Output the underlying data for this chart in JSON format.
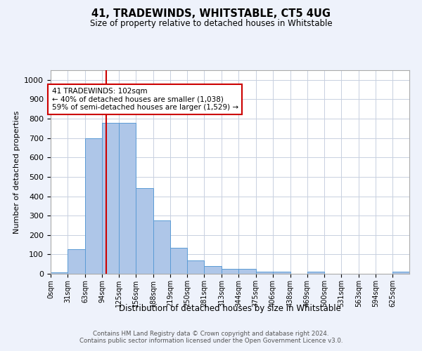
{
  "title1": "41, TRADEWINDS, WHITSTABLE, CT5 4UG",
  "title2": "Size of property relative to detached houses in Whitstable",
  "xlabel": "Distribution of detached houses by size in Whitstable",
  "ylabel": "Number of detached properties",
  "bar_values": [
    8,
    127,
    700,
    778,
    778,
    443,
    275,
    133,
    70,
    40,
    25,
    25,
    12,
    12,
    0,
    12,
    0,
    0,
    0,
    0,
    12
  ],
  "bin_edges": [
    0,
    31,
    63,
    94,
    125,
    156,
    188,
    219,
    250,
    281,
    313,
    344,
    375,
    406,
    438,
    469,
    500,
    531,
    563,
    594,
    625,
    656
  ],
  "x_tick_labels": [
    "0sqm",
    "31sqm",
    "63sqm",
    "94sqm",
    "125sqm",
    "156sqm",
    "188sqm",
    "219sqm",
    "250sqm",
    "281sqm",
    "313sqm",
    "344sqm",
    "375sqm",
    "406sqm",
    "438sqm",
    "469sqm",
    "500sqm",
    "531sqm",
    "563sqm",
    "594sqm",
    "625sqm"
  ],
  "bar_color": "#aec6e8",
  "bar_edge_color": "#5b9bd5",
  "vline_x": 102,
  "vline_color": "#cc0000",
  "annotation_text": "41 TRADEWINDS: 102sqm\n← 40% of detached houses are smaller (1,038)\n59% of semi-detached houses are larger (1,529) →",
  "annotation_box_color": "#ffffff",
  "annotation_box_edge_color": "#cc0000",
  "ylim": [
    0,
    1050
  ],
  "yticks": [
    0,
    100,
    200,
    300,
    400,
    500,
    600,
    700,
    800,
    900,
    1000
  ],
  "footer_text": "Contains HM Land Registry data © Crown copyright and database right 2024.\nContains public sector information licensed under the Open Government Licence v3.0.",
  "bg_color": "#eef2fb",
  "plot_bg_color": "#ffffff",
  "grid_color": "#c8d0e0"
}
